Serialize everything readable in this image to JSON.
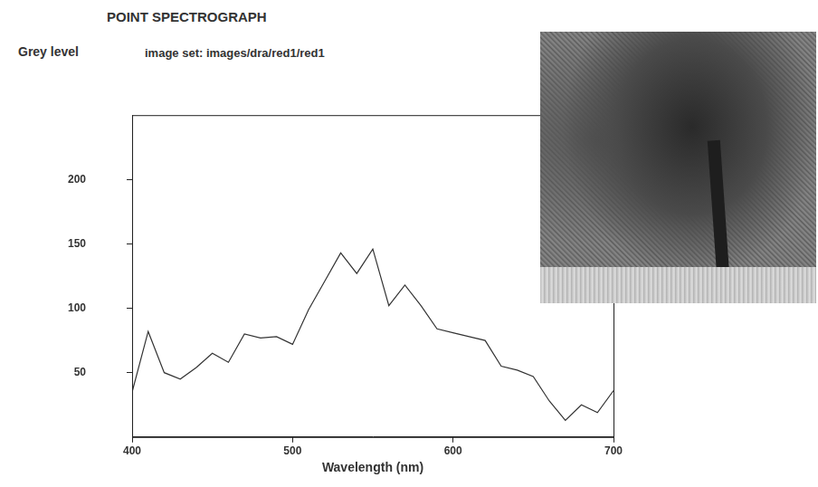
{
  "chart_data": {
    "type": "line",
    "title": "POINT SPECTROGRAPH",
    "subtitle": "image set: images/dra/red1/red1",
    "y_label": "Grey level",
    "x_label": "Wavelength (nm)",
    "x": [
      400,
      410,
      420,
      430,
      440,
      450,
      460,
      470,
      480,
      490,
      500,
      510,
      520,
      530,
      540,
      550,
      560,
      570,
      580,
      590,
      600,
      610,
      620,
      630,
      640,
      650,
      660,
      670,
      680,
      690,
      700
    ],
    "values": [
      35,
      82,
      50,
      45,
      54,
      65,
      58,
      80,
      77,
      78,
      72,
      99,
      121,
      143,
      127,
      146,
      102,
      118,
      102,
      84,
      81,
      78,
      75,
      55,
      52,
      47,
      28,
      13,
      25,
      19,
      36
    ],
    "color": "#333333",
    "xlim": [
      400,
      700
    ],
    "xticks": [
      400,
      500,
      600,
      700
    ],
    "ylim": [
      0,
      250
    ],
    "yticks": [
      50,
      100,
      150,
      200
    ],
    "grid": false
  }
}
